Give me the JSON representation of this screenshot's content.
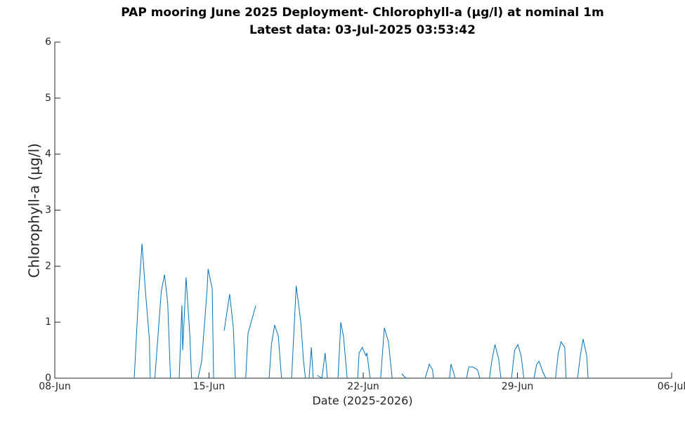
{
  "chart_data": {
    "type": "line",
    "title": "PAP mooring  June 2025 Deployment- Chlorophyll-a (μg/l) at nominal 1m",
    "subtitle": "Latest data: 03-Jul-2025 03:53:42",
    "x_label": "Date (2025-2026)",
    "y_label": "Chlorophyll-a (μg/l)",
    "xlim": [
      "2025-06-08",
      "2025-07-06"
    ],
    "xticks": [
      {
        "value": "2025-06-08",
        "label": "08-Jun"
      },
      {
        "value": "2025-06-15",
        "label": "15-Jun"
      },
      {
        "value": "2025-06-22",
        "label": "22-Jun"
      },
      {
        "value": "2025-06-29",
        "label": "29-Jun"
      },
      {
        "value": "2025-07-06",
        "label": "06-Jul"
      }
    ],
    "ylim": [
      0,
      6
    ],
    "yticks": [
      0,
      1,
      2,
      3,
      4,
      5,
      6
    ],
    "grid": false,
    "x": [
      "2025-06-11 14:30",
      "2025-06-11 19:00",
      "2025-06-11 23:00",
      "2025-06-12 03:00",
      "2025-06-12 07:00",
      "2025-06-12 08:00",
      null,
      "2025-06-12 13:00",
      "2025-06-12 20:00",
      "2025-06-12 23:30",
      "2025-06-13 03:00",
      "2025-06-13 06:00",
      null,
      "2025-06-13 15:30",
      "2025-06-13 18:30",
      "2025-06-13 19:20",
      "2025-06-13 23:00",
      "2025-06-14 03:00",
      "2025-06-14 05:00",
      null,
      "2025-06-14 12:00",
      "2025-06-14 16:00",
      "2025-06-14 22:00",
      "2025-06-14 23:00",
      "2025-06-15 03:30",
      "2025-06-15 05:00",
      null,
      "2025-06-15 16:30",
      "2025-06-15 22:30",
      "2025-06-16 02:30",
      "2025-06-16 04:40",
      null,
      "2025-06-16 16:00",
      "2025-06-16 18:30",
      "2025-06-17 03:00",
      null,
      "2025-06-17 17:30",
      "2025-06-17 20:00",
      "2025-06-17 23:30",
      "2025-06-18 03:30",
      "2025-06-18 07:00",
      null,
      "2025-06-18 18:00",
      "2025-06-18 19:30",
      "2025-06-18 23:00",
      "2025-06-19 04:00",
      "2025-06-19 07:00",
      "2025-06-19 09:00",
      null,
      "2025-06-19 13:00",
      "2025-06-19 15:30",
      "2025-06-19 17:30",
      null,
      "2025-06-19 22:00",
      "2025-06-20 03:00",
      "2025-06-20 06:30",
      "2025-06-20 09:00",
      null,
      "2025-06-20 20:30",
      "2025-06-20 23:00",
      "2025-06-20 23:30",
      "2025-06-21 02:30",
      "2025-06-21 06:30",
      null,
      "2025-06-21 18:00",
      "2025-06-21 19:30",
      "2025-06-21 23:00",
      "2025-06-22 03:00",
      "2025-06-22 04:00",
      "2025-06-22 07:30",
      null,
      "2025-06-22 19:00",
      "2025-06-22 23:00",
      "2025-06-23 03:30",
      "2025-06-23 07:30",
      null,
      "2025-06-23 18:00",
      "2025-06-23 22:30",
      null,
      "2025-06-24 19:30",
      "2025-06-25 00:00",
      "2025-06-25 03:30",
      "2025-06-25 04:30",
      null,
      "2025-06-25 22:00",
      "2025-06-25 23:30",
      "2025-06-26 02:30",
      "2025-06-26 04:00",
      null,
      "2025-06-26 16:30",
      "2025-06-26 19:00",
      "2025-06-26 23:30",
      "2025-06-27 04:30",
      "2025-06-27 07:00",
      null,
      "2025-06-27 17:30",
      "2025-06-27 20:00",
      "2025-06-27 23:30",
      "2025-06-28 03:30",
      "2025-06-28 06:00",
      null,
      "2025-06-28 17:30",
      "2025-06-28 21:00",
      "2025-06-29 00:30",
      "2025-06-29 04:00",
      "2025-06-29 07:00",
      null,
      "2025-06-29 18:00",
      "2025-06-29 21:00",
      "2025-06-29 23:30",
      "2025-06-30 04:00",
      "2025-06-30 07:00",
      null,
      "2025-06-30 17:30",
      "2025-06-30 20:30",
      "2025-06-30 23:30",
      "2025-07-01 03:30",
      "2025-07-01 05:00",
      null,
      "2025-07-01 17:30",
      "2025-07-01 20:30",
      "2025-07-01 23:30",
      "2025-07-02 03:30",
      "2025-07-02 05:00"
    ],
    "series": [
      {
        "color": "#0072bd",
        "values": [
          0,
          1.4,
          2.4,
          1.5,
          0.7,
          0,
          null,
          0,
          1.55,
          1.85,
          1.35,
          0,
          null,
          0,
          1.3,
          0.5,
          1.8,
          0.8,
          0,
          null,
          0,
          0.3,
          1.6,
          1.95,
          1.6,
          0,
          null,
          0.85,
          1.5,
          0.9,
          0,
          null,
          0,
          0.8,
          1.3,
          null,
          0,
          0.6,
          0.95,
          0.75,
          0,
          null,
          0,
          0.5,
          1.65,
          1.0,
          0.3,
          0,
          null,
          0,
          0.55,
          0,
          null,
          0.05,
          0,
          0.45,
          0,
          null,
          0,
          0.8,
          1.0,
          0.75,
          0,
          null,
          0,
          0.45,
          0.55,
          0.4,
          0.45,
          0,
          null,
          0,
          0.9,
          0.65,
          0,
          null,
          0.08,
          0,
          null,
          0,
          0.25,
          0.15,
          0,
          null,
          0,
          0.25,
          0.1,
          0,
          null,
          0,
          0.2,
          0.2,
          0.15,
          0,
          null,
          0,
          0.3,
          0.6,
          0.35,
          0,
          null,
          0,
          0.5,
          0.6,
          0.4,
          0,
          null,
          0,
          0.25,
          0.3,
          0.1,
          0,
          null,
          0,
          0.45,
          0.65,
          0.55,
          0,
          null,
          0,
          0.4,
          0.7,
          0.4,
          0
        ]
      }
    ]
  }
}
